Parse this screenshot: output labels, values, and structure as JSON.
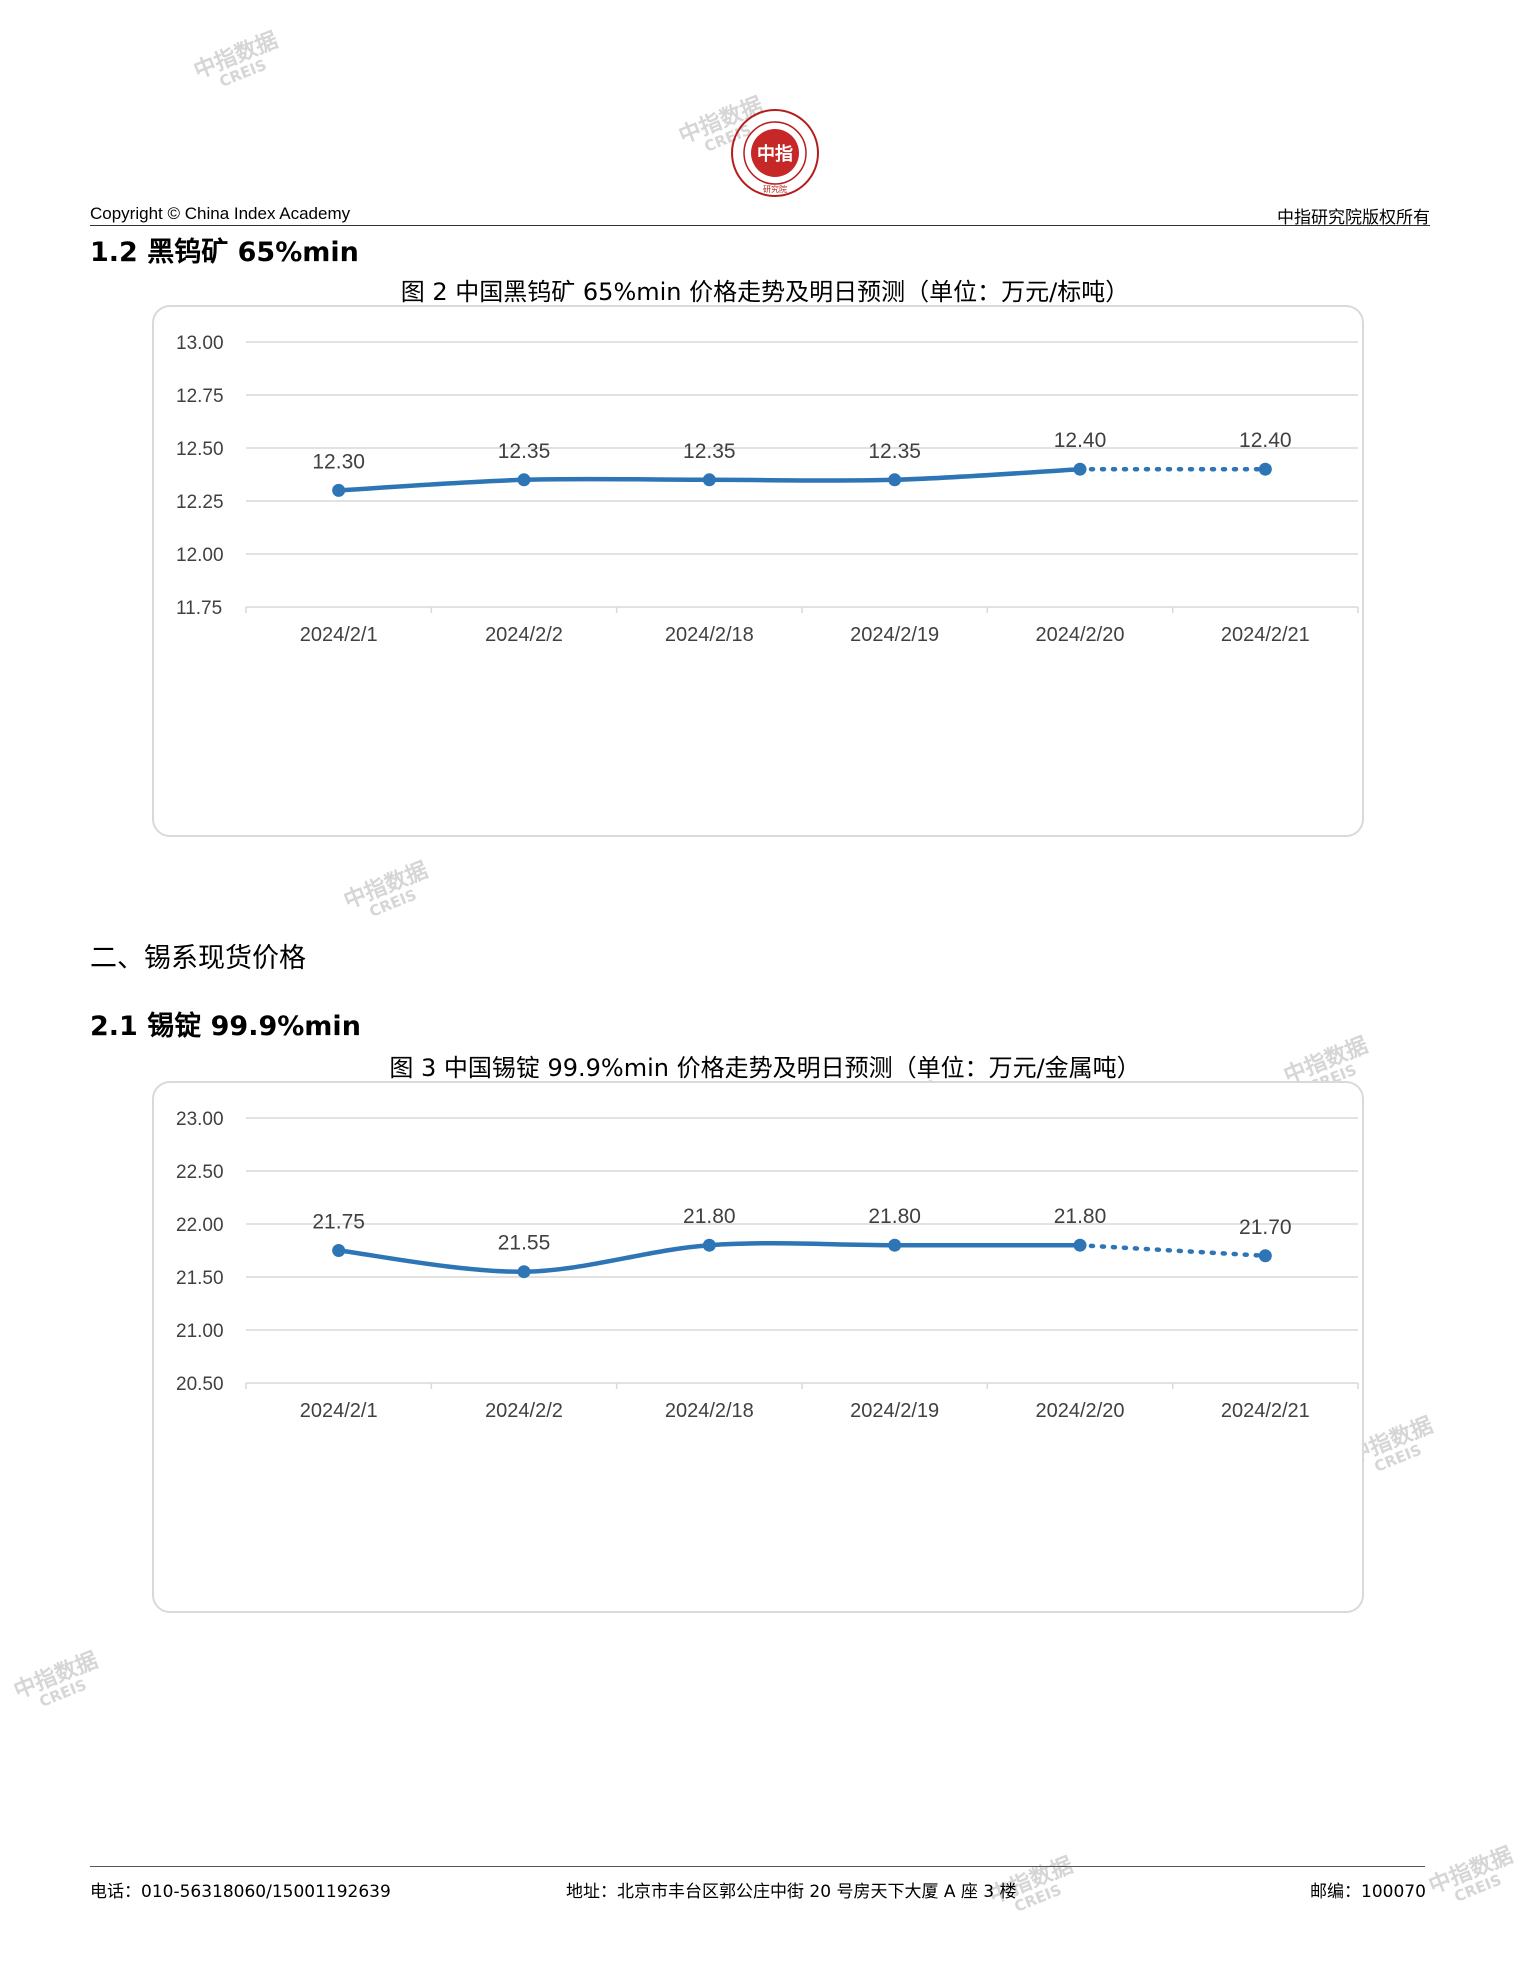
{
  "header": {
    "copyright": "Copyright © China Index Academy",
    "rights": "中指研究院版权所有",
    "logo": {
      "center": "中指",
      "ring": "CHINA INDEX ACADEMY",
      "bottom": "研究院"
    }
  },
  "sections": {
    "s12": "1.2 黑钨矿 65%min",
    "s2": "二、锡系现货价格",
    "s21": "2.1 锡锭 99.9%min"
  },
  "watermark": {
    "cn": "中指数据",
    "en": "CREIS"
  },
  "chart_data": [
    {
      "type": "line",
      "title": "图 2 中国黑钨矿 65%min 价格走势及明日预测（单位：万元/标吨）",
      "categories": [
        "2024/2/1",
        "2024/2/2",
        "2024/2/18",
        "2024/2/19",
        "2024/2/20",
        "2024/2/21"
      ],
      "values": [
        12.3,
        12.35,
        12.35,
        12.35,
        12.4,
        12.4
      ],
      "labels": [
        "12.30",
        "12.35",
        "12.35",
        "12.35",
        "12.40",
        "12.40"
      ],
      "forecast_from_index": 4,
      "ylim": [
        11.75,
        13.0
      ],
      "yticks": [
        "11.75",
        "12.00",
        "12.25",
        "12.50",
        "12.75",
        "13.00"
      ],
      "ytick_values": [
        11.75,
        12.0,
        12.25,
        12.5,
        12.75,
        13.0
      ],
      "grid": true,
      "color": "#2e75b6"
    },
    {
      "type": "line",
      "title": "图 3 中国锡锭 99.9%min 价格走势及明日预测（单位：万元/金属吨）",
      "categories": [
        "2024/2/1",
        "2024/2/2",
        "2024/2/18",
        "2024/2/19",
        "2024/2/20",
        "2024/2/21"
      ],
      "values": [
        21.75,
        21.55,
        21.8,
        21.8,
        21.8,
        21.7
      ],
      "labels": [
        "21.75",
        "21.55",
        "21.80",
        "21.80",
        "21.80",
        "21.70"
      ],
      "forecast_from_index": 4,
      "ylim": [
        20.5,
        23.0
      ],
      "yticks": [
        "20.50",
        "21.00",
        "21.50",
        "22.00",
        "22.50",
        "23.00"
      ],
      "ytick_values": [
        20.5,
        21.0,
        21.5,
        22.0,
        22.5,
        23.0
      ],
      "grid": true,
      "color": "#2e75b6"
    }
  ],
  "footer": {
    "phone": "电话：010-56318060/15001192639",
    "address": "地址：北京市丰台区郭公庄中街 20 号房天下大厦 A 座 3 楼",
    "postcode": "邮编：100070"
  }
}
